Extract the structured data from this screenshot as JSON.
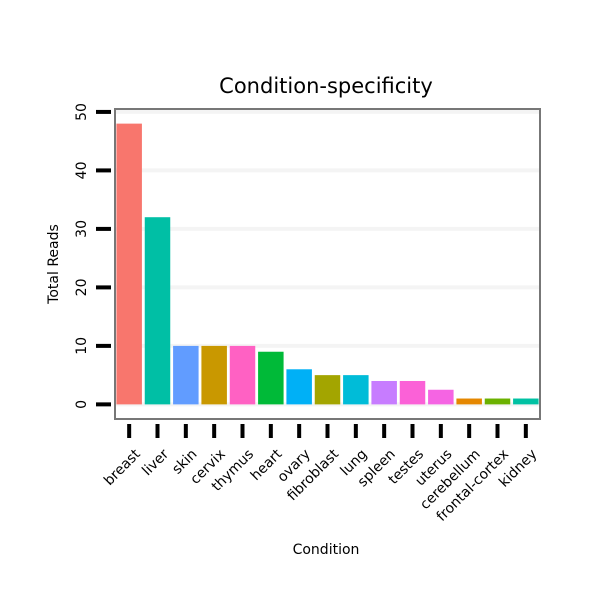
{
  "chart_data": {
    "type": "bar",
    "title": "Condition-specificity",
    "xlabel": "Condition",
    "ylabel": "Total Reads",
    "ylim": [
      -2.5,
      50.5
    ],
    "yticks": [
      0,
      10,
      20,
      30,
      40,
      50
    ],
    "grid": true,
    "categories": [
      "breast",
      "liver",
      "skin",
      "cervix",
      "thymus",
      "heart",
      "ovary",
      "fibroblast",
      "lung",
      "spleen",
      "testes",
      "uterus",
      "cerebellum",
      "frontal-cortex",
      "kidney"
    ],
    "values": [
      48,
      32,
      10,
      10,
      10,
      9,
      6,
      5,
      5,
      4,
      4,
      2.5,
      1,
      1,
      1
    ],
    "colors": [
      "#F8766D",
      "#00BFA5",
      "#619CFF",
      "#C99800",
      "#FF61C3",
      "#00BA38",
      "#00B0F6",
      "#A3A500",
      "#00BCD8",
      "#C77CFF",
      "#FB61D7",
      "#F564E3",
      "#E58700",
      "#6BB100",
      "#00C1A3"
    ]
  }
}
